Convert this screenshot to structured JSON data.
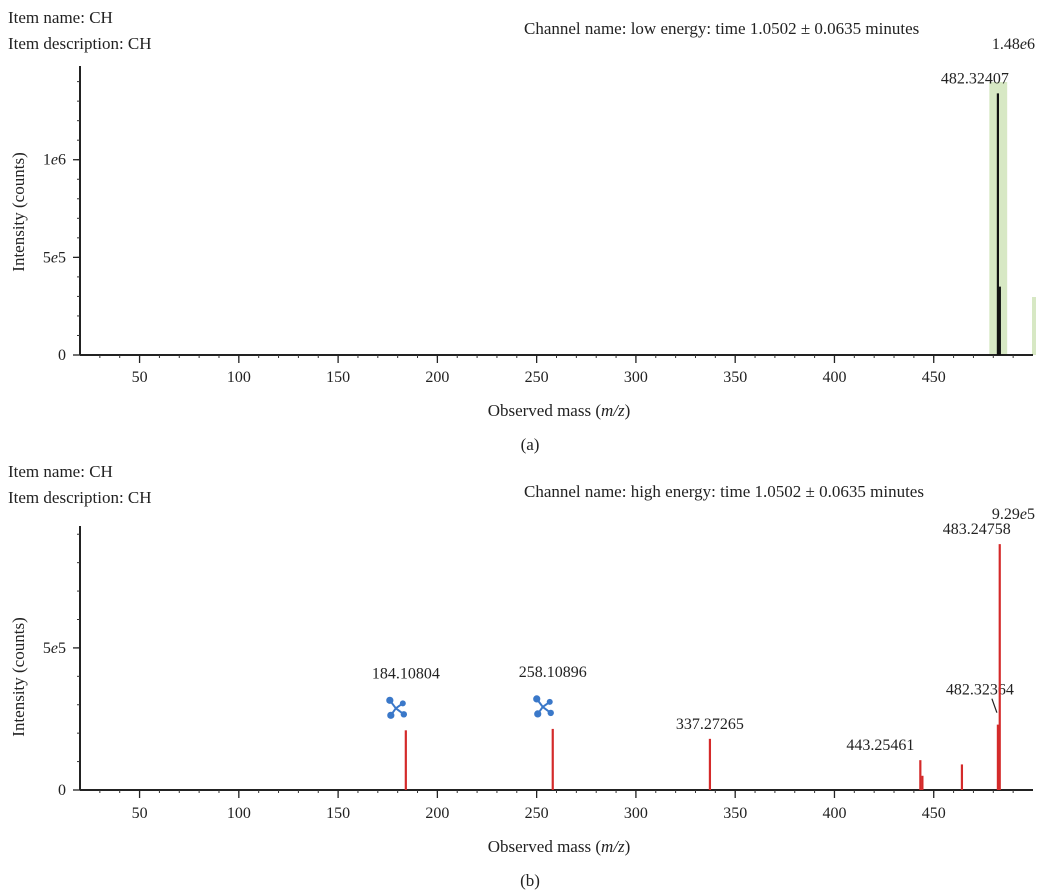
{
  "chart_data": [
    {
      "type": "bar",
      "panel_label": "(a)",
      "item_name": "Item name: CH",
      "item_description": "Item description: CH",
      "channel": "Channel name: low energy: time 1.0502 ± 0.0635 minutes",
      "max_label_parts": [
        "1.48",
        "e",
        "6"
      ],
      "xlabel_parts": [
        "Observed mass (",
        "m/z",
        ")"
      ],
      "ylabel": "Intensity (counts)",
      "xlim": [
        20,
        500
      ],
      "ylim": [
        0,
        1480000
      ],
      "x_ticks": [
        50,
        100,
        150,
        200,
        250,
        300,
        350,
        400,
        450
      ],
      "y_ticks": [
        {
          "value": 0,
          "parts": [
            "0",
            "",
            ""
          ]
        },
        {
          "value": 500000,
          "parts": [
            "5",
            "e",
            "5"
          ]
        },
        {
          "value": 1000000,
          "parts": [
            "1",
            "e",
            "6"
          ]
        }
      ],
      "highlight": {
        "x_from": 478,
        "x_to": 487,
        "color": "#d7e8c4"
      },
      "bar_color": "#111111",
      "peaks": [
        {
          "mz": 482.32407,
          "intensity": 1340000,
          "label": "482.32407"
        },
        {
          "mz": 483.3,
          "intensity": 350000,
          "label": ""
        }
      ]
    },
    {
      "type": "bar",
      "panel_label": "(b)",
      "item_name": "Item name: CH",
      "item_description": "Item description: CH",
      "channel": "Channel name: high energy: time 1.0502 ± 0.0635 minutes",
      "max_label_parts": [
        "9.29",
        "e",
        "5"
      ],
      "xlabel_parts": [
        "Observed mass (",
        "m/z",
        ")"
      ],
      "ylabel": "Intensity (counts)",
      "xlim": [
        20,
        500
      ],
      "ylim": [
        0,
        929000
      ],
      "x_ticks": [
        50,
        100,
        150,
        200,
        250,
        300,
        350,
        400,
        450
      ],
      "y_ticks": [
        {
          "value": 0,
          "parts": [
            "0",
            "",
            ""
          ]
        },
        {
          "value": 500000,
          "parts": [
            "5",
            "e",
            "5"
          ]
        }
      ],
      "bar_color": "#d42a2a",
      "molecule_icon_color": "#3a78c9",
      "peaks": [
        {
          "mz": 184.10804,
          "intensity": 210000,
          "label": "184.10804",
          "icon": "molecule-icon"
        },
        {
          "mz": 258.10896,
          "intensity": 215000,
          "label": "258.10896",
          "icon": "molecule-icon"
        },
        {
          "mz": 337.27265,
          "intensity": 180000,
          "label": "337.27265"
        },
        {
          "mz": 443.25461,
          "intensity": 105000,
          "label": "443.25461"
        },
        {
          "mz": 444.3,
          "intensity": 50000,
          "label": ""
        },
        {
          "mz": 464.2,
          "intensity": 90000,
          "label": ""
        },
        {
          "mz": 482.32364,
          "intensity": 230000,
          "label": "482.32364",
          "leader": true
        },
        {
          "mz": 483.24758,
          "intensity": 865000,
          "label": "483.24758"
        }
      ]
    }
  ]
}
